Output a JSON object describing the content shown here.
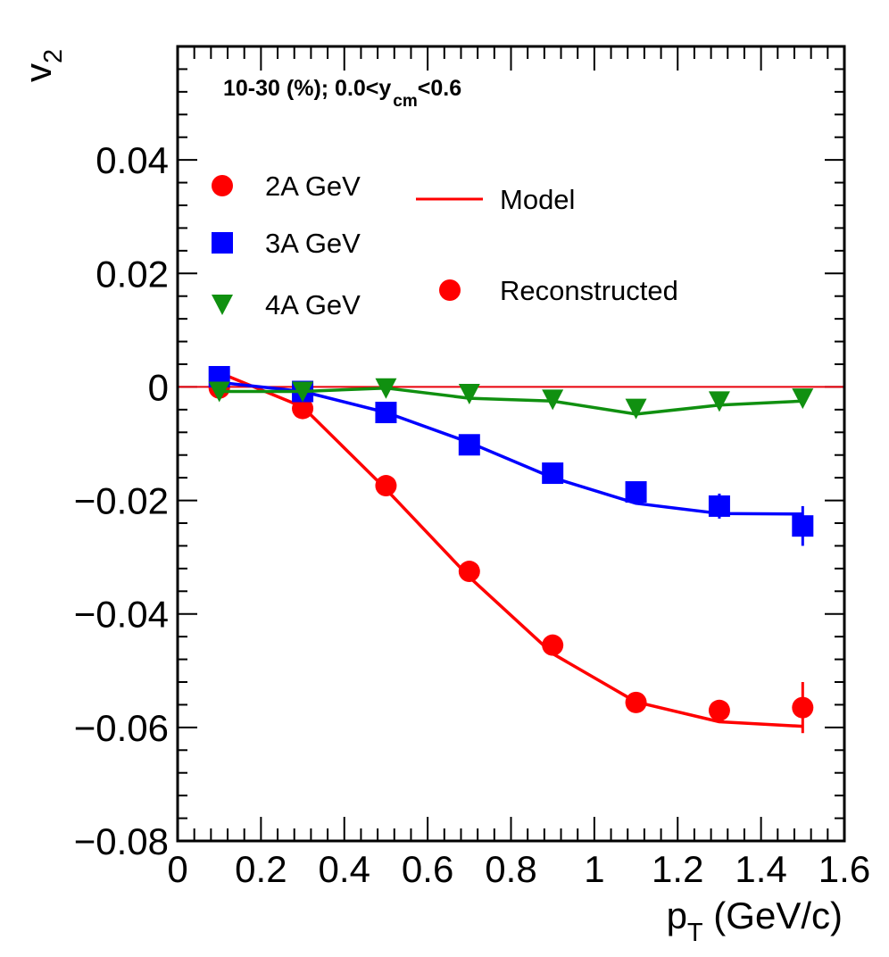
{
  "chart_data": {
    "type": "scatter",
    "annotation": {
      "main": "10-30 (%); 0.0<y",
      "sub": "cm",
      "tail": "<0.6"
    },
    "xlabel": {
      "main": "p",
      "sub": "T",
      "tail": " (GeV/c)"
    },
    "ylabel": {
      "main": "v",
      "sub": "2"
    },
    "xlim": [
      0,
      1.6
    ],
    "ylim": [
      -0.08,
      0.06
    ],
    "x_ticks": [
      0,
      0.2,
      0.4,
      0.6,
      0.8,
      1.0,
      1.2,
      1.4,
      1.6
    ],
    "x_tick_labels": [
      "0",
      "0.2",
      "0.4",
      "0.6",
      "0.8",
      "1",
      "1.2",
      "1.4",
      "1.6"
    ],
    "y_ticks": [
      -0.08,
      -0.06,
      -0.04,
      -0.02,
      0,
      0.02,
      0.04
    ],
    "y_tick_labels": [
      "−0.08",
      "−0.06",
      "−0.04",
      "−0.02",
      "0",
      "0.02",
      "0.04"
    ],
    "zero_line": {
      "y": 0,
      "color": "#e8000b"
    },
    "legend": {
      "series_entries": [
        {
          "label": "2A GeV",
          "marker": "circle",
          "color": "#ff0000"
        },
        {
          "label": "3A GeV",
          "marker": "square",
          "color": "#0000ff"
        },
        {
          "label": "4A GeV",
          "marker": "triangle-down",
          "color": "#109010"
        }
      ],
      "type_entries": [
        {
          "label": "Model",
          "marker": "line",
          "color": "#ff0000"
        },
        {
          "label": "Reconstructed",
          "marker": "circle",
          "color": "#ff0000"
        }
      ]
    },
    "series": [
      {
        "name": "2A GeV",
        "color": "#ff0000",
        "marker": "circle",
        "x": [
          0.1,
          0.3,
          0.5,
          0.7,
          0.9,
          1.1,
          1.3,
          1.5
        ],
        "reconstructed": [
          -0.0002,
          -0.0038,
          -0.0174,
          -0.0325,
          -0.0455,
          -0.0556,
          -0.057,
          -0.0565
        ],
        "errors": [
          0.0005,
          0.0005,
          0.0007,
          0.0008,
          0.001,
          0.0012,
          0.0018,
          0.0045
        ],
        "model": [
          0.0025,
          -0.0035,
          -0.018,
          -0.0335,
          -0.047,
          -0.0555,
          -0.059,
          -0.0598
        ]
      },
      {
        "name": "3A GeV",
        "color": "#0000ff",
        "marker": "square",
        "x": [
          0.1,
          0.3,
          0.5,
          0.7,
          0.9,
          1.1,
          1.3,
          1.5
        ],
        "reconstructed": [
          0.0018,
          -0.0008,
          -0.0045,
          -0.0102,
          -0.0152,
          -0.0185,
          -0.021,
          -0.0245
        ],
        "errors": [
          0.0005,
          0.0005,
          0.0006,
          0.0008,
          0.001,
          0.0012,
          0.0022,
          0.0035
        ],
        "model": [
          0.0008,
          -0.0008,
          -0.0045,
          -0.0098,
          -0.016,
          -0.0205,
          -0.0223,
          -0.0224
        ]
      },
      {
        "name": "4A GeV",
        "color": "#109010",
        "marker": "triangle-down",
        "x": [
          0.1,
          0.3,
          0.5,
          0.7,
          0.9,
          1.1,
          1.3,
          1.5
        ],
        "reconstructed": [
          -0.0008,
          -0.0008,
          -0.0002,
          -0.0012,
          -0.0022,
          -0.0038,
          -0.0025,
          -0.002
        ],
        "errors": [
          0.0004,
          0.0004,
          0.0005,
          0.0006,
          0.0007,
          0.0008,
          0.001,
          0.0012
        ],
        "model": [
          -0.0008,
          -0.0008,
          -0.0002,
          -0.002,
          -0.0025,
          -0.0048,
          -0.0032,
          -0.0025
        ]
      }
    ]
  }
}
